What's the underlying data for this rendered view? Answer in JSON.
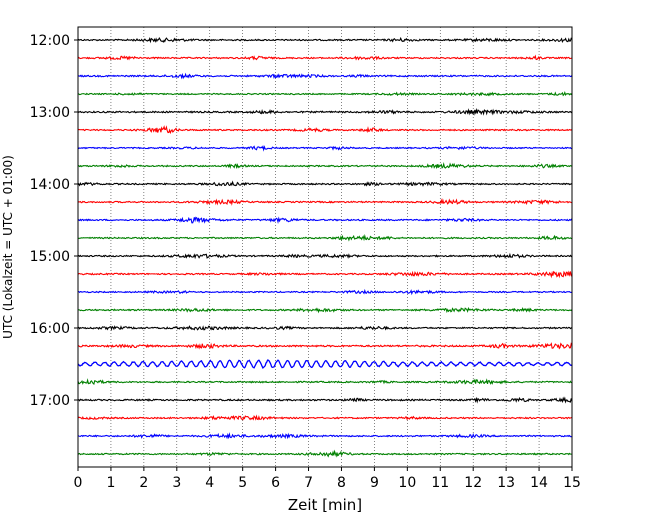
{
  "chart_data": {
    "type": "line",
    "subtype": "seismogram-helicorder",
    "xlabel": "Zeit  [min]",
    "ylabel": "UTC (Lokalzeit = UTC + 01:00)",
    "xlim": [
      0,
      15
    ],
    "x_ticks": [
      "0",
      "1",
      "2",
      "3",
      "4",
      "5",
      "6",
      "7",
      "8",
      "9",
      "10",
      "11",
      "12",
      "13",
      "14",
      "15"
    ],
    "y_ticks": [
      {
        "label": "12:00",
        "trace_index": 0
      },
      {
        "label": "13:00",
        "trace_index": 4
      },
      {
        "label": "14:00",
        "trace_index": 8
      },
      {
        "label": "15:00",
        "trace_index": 12
      },
      {
        "label": "16:00",
        "trace_index": 16
      },
      {
        "label": "17:00",
        "trace_index": 20
      }
    ],
    "minutes_per_line": 15,
    "vertical_grid": "dotted, every minute",
    "color_cycle": [
      "#000000",
      "#ff0000",
      "#0000ff",
      "#008000"
    ],
    "traces": [
      {
        "start": "12:00",
        "color": "#000000",
        "amplitude": 1.0
      },
      {
        "start": "12:15",
        "color": "#ff0000",
        "amplitude": 1.0
      },
      {
        "start": "12:30",
        "color": "#0000ff",
        "amplitude": 1.1
      },
      {
        "start": "12:45",
        "color": "#008000",
        "amplitude": 0.9
      },
      {
        "start": "13:00",
        "color": "#000000",
        "amplitude": 1.1
      },
      {
        "start": "13:15",
        "color": "#ff0000",
        "amplitude": 1.0
      },
      {
        "start": "13:30",
        "color": "#0000ff",
        "amplitude": 0.9
      },
      {
        "start": "13:45",
        "color": "#008000",
        "amplitude": 1.0
      },
      {
        "start": "14:00",
        "color": "#000000",
        "amplitude": 1.0
      },
      {
        "start": "14:15",
        "color": "#ff0000",
        "amplitude": 1.0
      },
      {
        "start": "14:30",
        "color": "#0000ff",
        "amplitude": 1.0
      },
      {
        "start": "14:45",
        "color": "#008000",
        "amplitude": 1.0
      },
      {
        "start": "15:00",
        "color": "#000000",
        "amplitude": 1.0
      },
      {
        "start": "15:15",
        "color": "#ff0000",
        "amplitude": 1.0
      },
      {
        "start": "15:30",
        "color": "#0000ff",
        "amplitude": 0.9
      },
      {
        "start": "15:45",
        "color": "#008000",
        "amplitude": 1.0
      },
      {
        "start": "16:00",
        "color": "#000000",
        "amplitude": 1.0
      },
      {
        "start": "16:15",
        "color": "#ff0000",
        "amplitude": 1.2
      },
      {
        "start": "16:30",
        "color": "#0000ff",
        "amplitude": 2.6,
        "note": "long-period oscillation"
      },
      {
        "start": "16:45",
        "color": "#008000",
        "amplitude": 1.0
      },
      {
        "start": "17:00",
        "color": "#000000",
        "amplitude": 1.1
      },
      {
        "start": "17:15",
        "color": "#ff0000",
        "amplitude": 1.0
      },
      {
        "start": "17:30",
        "color": "#0000ff",
        "amplitude": 1.0
      },
      {
        "start": "17:45",
        "color": "#008000",
        "amplitude": 1.0
      }
    ]
  }
}
